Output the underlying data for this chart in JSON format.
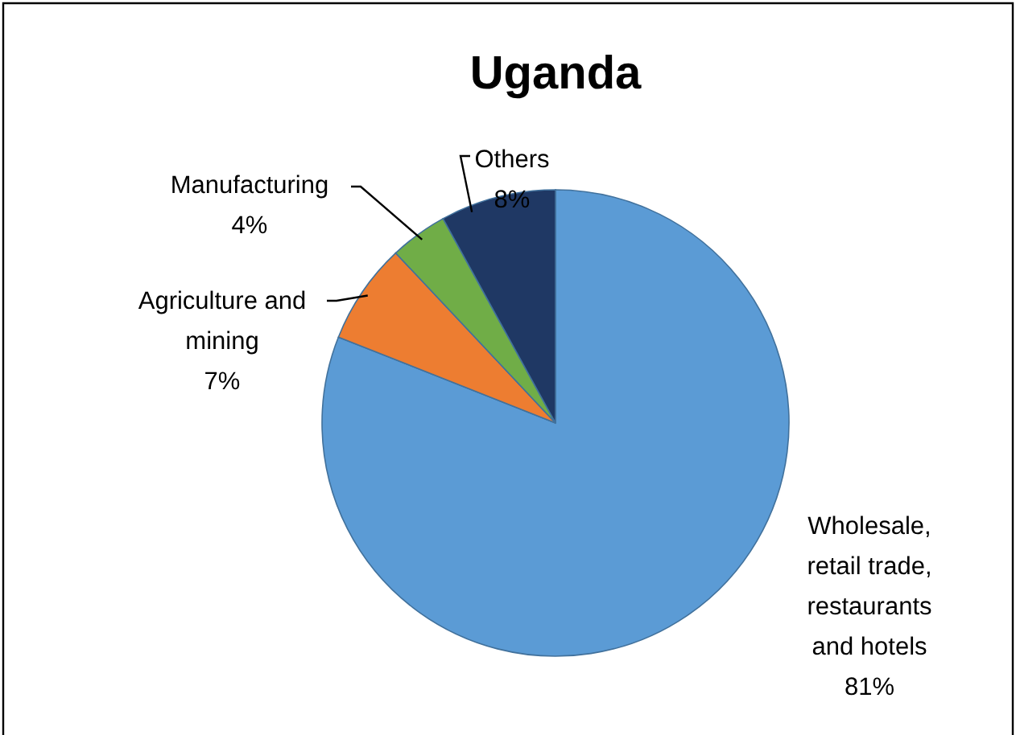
{
  "chart_data": {
    "type": "pie",
    "title": "Uganda",
    "categories": [
      "Wholesale, retail trade, restaurants and hotels",
      "Agriculture and mining",
      "Manufacturing",
      "Others"
    ],
    "values": [
      81,
      7,
      4,
      8
    ],
    "value_labels": [
      "81%",
      "7%",
      "4%",
      "8%"
    ],
    "colors": [
      "#5b9bd5",
      "#ed7d31",
      "#70ad47",
      "#1f3864"
    ]
  }
}
